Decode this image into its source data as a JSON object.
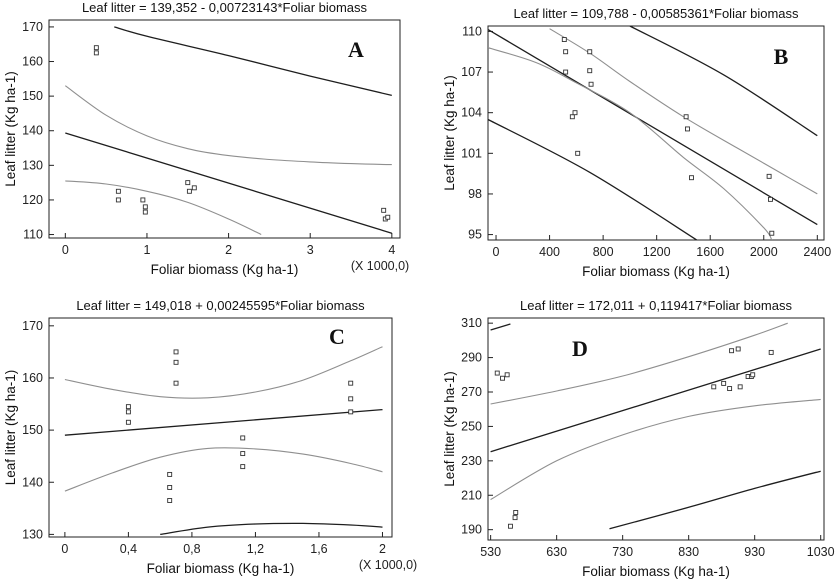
{
  "chart_data": [
    {
      "type": "scatter",
      "panel_label": "A",
      "title": "Leaf litter = 139,352 - 0,00723143*Foliar biomass",
      "xlabel": "Foliar biomass (Kg ha-1)",
      "ylabel": "Leaf litter (Kg ha-1)",
      "x_multiplier": "(X 1000,0)",
      "xlim": [
        -0.2,
        4.1
      ],
      "ylim": [
        109,
        172
      ],
      "xticks": [
        0,
        1,
        2,
        3,
        4
      ],
      "xtick_labels": [
        "0",
        "1",
        "2",
        "3",
        "4"
      ],
      "yticks": [
        110,
        120,
        130,
        140,
        150,
        160,
        170
      ],
      "ytick_labels": [
        "110",
        "120",
        "130",
        "140",
        "150",
        "160",
        "170"
      ],
      "points": {
        "x": [
          0.38,
          0.38,
          0.65,
          0.65,
          0.95,
          0.98,
          0.98,
          1.5,
          1.52,
          1.58,
          3.9,
          3.92,
          3.95
        ],
        "y": [
          164,
          162.5,
          122.5,
          120,
          120,
          118,
          116.5,
          125,
          122.5,
          123.5,
          117,
          114.5,
          115
        ]
      },
      "series": [
        {
          "name": "fit",
          "shade": "dark",
          "x": [
            0,
            4
          ],
          "y": [
            139.35,
            110.4
          ]
        },
        {
          "name": "upper-confidence",
          "shade": "gray",
          "x": [
            0,
            0.5,
            1,
            1.5,
            2,
            2.5,
            3,
            3.5,
            4
          ],
          "y": [
            153,
            144.5,
            138.5,
            134.8,
            132.8,
            131.7,
            131,
            130.5,
            130.2
          ]
        },
        {
          "name": "lower-confidence",
          "shade": "gray",
          "x": [
            0,
            0.5,
            1,
            1.5,
            2,
            2.4
          ],
          "y": [
            125.5,
            124.6,
            122.5,
            119.3,
            114.5,
            110
          ]
        },
        {
          "name": "upper-prediction",
          "shade": "dark",
          "x": [
            0.6,
            1,
            2,
            3,
            4
          ],
          "y": [
            170,
            167.3,
            161.7,
            155.8,
            150.2
          ]
        }
      ]
    },
    {
      "type": "scatter",
      "panel_label": "B",
      "title": "Leaf litter = 109,788 - 0,00585361*Foliar biomass",
      "xlabel": "Foliar biomass (Kg ha-1)",
      "ylabel": "Leaf litter (Kg ha-1)",
      "x_multiplier": "",
      "xlim": [
        -60,
        2450
      ],
      "ylim": [
        94.6,
        110.4
      ],
      "xticks": [
        0,
        400,
        800,
        1200,
        1600,
        2000,
        2400
      ],
      "xtick_labels": [
        "0",
        "400",
        "800",
        "1200",
        "1600",
        "2000",
        "2400"
      ],
      "yticks": [
        95,
        98,
        101,
        104,
        107,
        110
      ],
      "ytick_labels": [
        "95",
        "98",
        "101",
        "104",
        "107",
        "110"
      ],
      "points": {
        "x": [
          510,
          520,
          520,
          570,
          590,
          610,
          700,
          700,
          710,
          1420,
          1430,
          1460,
          2040,
          2050,
          2060
        ],
        "y": [
          109.4,
          108.5,
          107,
          103.7,
          104,
          101,
          108.5,
          107.1,
          106.1,
          103.7,
          102.8,
          99.2,
          99.3,
          97.6,
          95.1
        ]
      },
      "series": [
        {
          "name": "fit",
          "shade": "dark",
          "x": [
            -60,
            2400
          ],
          "y": [
            110.14,
            95.74
          ]
        },
        {
          "name": "upper-confidence",
          "shade": "gray",
          "x": [
            400,
            700,
            1000,
            1400,
            1800,
            2100,
            2400
          ],
          "y": [
            110.2,
            108.4,
            106.3,
            103.7,
            101.4,
            99.7,
            98
          ]
        },
        {
          "name": "lower-confidence",
          "shade": "gray",
          "x": [
            -60,
            300,
            600,
            1000,
            1400,
            1700,
            2000,
            2060
          ],
          "y": [
            108.8,
            107.7,
            106.2,
            104,
            100.7,
            98.4,
            95.5,
            94.6
          ]
        },
        {
          "name": "upper-prediction",
          "shade": "dark",
          "x": [
            1000,
            1700,
            2400
          ],
          "y": [
            110.4,
            106.8,
            102.3
          ]
        },
        {
          "name": "lower-prediction",
          "shade": "dark",
          "x": [
            -60,
            700,
            1500
          ],
          "y": [
            103.5,
            99.6,
            94.6
          ]
        }
      ]
    },
    {
      "type": "scatter",
      "panel_label": "C",
      "title": "Leaf litter = 149,018 + 0,00245595*Foliar biomass",
      "xlabel": "Foliar biomass (Kg ha-1)",
      "ylabel": "Leaf litter (Kg ha-1)",
      "x_multiplier": "(X 1000,0)",
      "xlim": [
        -0.1,
        2.06
      ],
      "ylim": [
        129.5,
        171.5
      ],
      "xticks": [
        0,
        0.4,
        0.8,
        1.2,
        1.6,
        2.0
      ],
      "xtick_labels": [
        "0",
        "0,4",
        "0,8",
        "1,2",
        "1,6",
        "2"
      ],
      "yticks": [
        130,
        140,
        150,
        160,
        170
      ],
      "ytick_labels": [
        "130",
        "140",
        "150",
        "160",
        "170"
      ],
      "points": {
        "x": [
          0.4,
          0.4,
          0.4,
          0.66,
          0.66,
          0.66,
          0.7,
          0.7,
          0.7,
          1.12,
          1.12,
          1.12,
          1.8,
          1.8,
          1.8
        ],
        "y": [
          154.5,
          153.5,
          151.5,
          141.5,
          139,
          136.5,
          165,
          163,
          159,
          148.5,
          145.5,
          143,
          159,
          156,
          153.5
        ]
      },
      "series": [
        {
          "name": "fit",
          "shade": "dark",
          "x": [
            0,
            2
          ],
          "y": [
            149.02,
            153.93
          ]
        },
        {
          "name": "upper-confidence",
          "shade": "gray",
          "x": [
            0,
            0.3,
            0.6,
            0.9,
            1.2,
            1.5,
            1.8,
            2.0
          ],
          "y": [
            159.7,
            157.8,
            156.4,
            156.2,
            157.3,
            159.6,
            163.3,
            166
          ]
        },
        {
          "name": "lower-confidence",
          "shade": "gray",
          "x": [
            0,
            0.3,
            0.6,
            0.9,
            1.2,
            1.5,
            1.8,
            2.0
          ],
          "y": [
            138.3,
            141.8,
            144.8,
            146.5,
            146.4,
            145.4,
            143.6,
            142
          ]
        },
        {
          "name": "lower-prediction",
          "shade": "dark",
          "x": [
            0.6,
            0.9,
            1.2,
            1.5,
            1.8,
            2.0
          ],
          "y": [
            130,
            131.4,
            132,
            132.1,
            131.8,
            131.4
          ]
        }
      ]
    },
    {
      "type": "scatter",
      "panel_label": "D",
      "title": "Leaf litter = 172,011 + 0,119417*Foliar biomass",
      "xlabel": "Foliar biomass (Kg ha-1)",
      "ylabel": "Leaf litter (Kg ha-1)",
      "x_multiplier": "",
      "xlim": [
        526,
        1035
      ],
      "ylim": [
        184,
        313
      ],
      "xticks": [
        530,
        630,
        730,
        830,
        930,
        1030
      ],
      "xtick_labels": [
        "530",
        "630",
        "730",
        "830",
        "930",
        "1030"
      ],
      "yticks": [
        190,
        210,
        230,
        250,
        270,
        290,
        310
      ],
      "ytick_labels": [
        "190",
        "210",
        "230",
        "250",
        "270",
        "290",
        "310"
      ],
      "points": {
        "x": [
          540,
          548,
          555,
          560,
          567,
          568,
          868,
          883,
          892,
          895,
          905,
          908,
          920,
          925,
          927,
          955
        ],
        "y": [
          281,
          278,
          280,
          192,
          197,
          200,
          273,
          275,
          272,
          294,
          295,
          273,
          279,
          279,
          280,
          293
        ]
      },
      "series": [
        {
          "name": "fit",
          "shade": "dark",
          "x": [
            530,
            1030
          ],
          "y": [
            235.3,
            295
          ]
        },
        {
          "name": "upper-confidence",
          "shade": "gray",
          "x": [
            530,
            630,
            730,
            830,
            930,
            980
          ],
          "y": [
            263,
            270.6,
            279.3,
            290.5,
            303,
            310
          ]
        },
        {
          "name": "lower-confidence",
          "shade": "gray",
          "x": [
            530,
            630,
            730,
            830,
            930,
            1030
          ],
          "y": [
            207.5,
            230,
            245.1,
            255.8,
            262,
            265.7
          ]
        },
        {
          "name": "upper-prediction",
          "shade": "dark",
          "x": [
            530,
            560
          ],
          "y": [
            306,
            309.5
          ]
        },
        {
          "name": "lower-prediction",
          "shade": "dark",
          "x": [
            710,
            830,
            930,
            1030
          ],
          "y": [
            190.5,
            203,
            214,
            224
          ]
        }
      ]
    }
  ]
}
